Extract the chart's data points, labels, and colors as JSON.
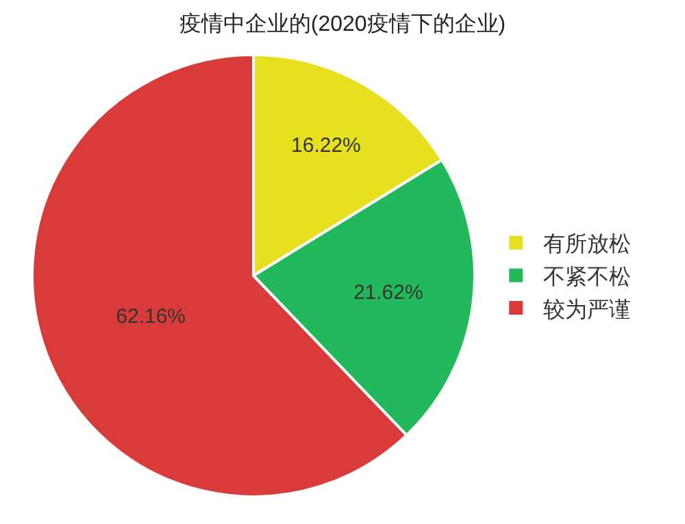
{
  "chart_data": {
    "type": "pie",
    "title": "疫情中企业的(2020疫情下的企业)",
    "categories": [
      "有所放松",
      "不紧不松",
      "较为严谨"
    ],
    "values": [
      16.22,
      21.62,
      62.16
    ],
    "value_labels": [
      "16.22%",
      "21.62%",
      "62.16%"
    ],
    "colors": [
      "#e6e01e",
      "#22b85c",
      "#d93a3a"
    ],
    "legend": "right"
  }
}
